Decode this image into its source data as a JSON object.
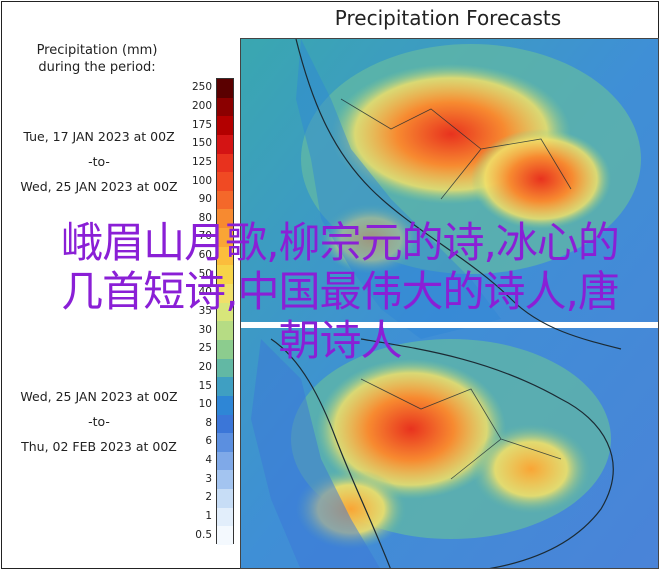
{
  "map": {
    "title": "Precipitation Forecasts",
    "legend_title_line1": "Precipitation (mm)",
    "legend_title_line2": "during the period:"
  },
  "period1": {
    "start": "Tue, 17 JAN 2023 at 00Z",
    "sep": "-to-",
    "end": "Wed, 25 JAN 2023 at 00Z"
  },
  "period2": {
    "start": "Wed, 25 JAN 2023 at 00Z",
    "sep": "-to-",
    "end": "Thu, 02 FEB 2023 at 00Z"
  },
  "colorbar": {
    "ticks": [
      "250",
      "200",
      "175",
      "150",
      "125",
      "100",
      "90",
      "80",
      "70",
      "60",
      "50",
      "40",
      "35",
      "30",
      "25",
      "20",
      "15",
      "10",
      "8",
      "6",
      "4",
      "3",
      "2",
      "1",
      "0.5"
    ],
    "colors": [
      "#5a0000",
      "#8b0000",
      "#b30000",
      "#d41414",
      "#e8321e",
      "#f04a23",
      "#f4682a",
      "#f78a30",
      "#f9a535",
      "#fbbd3c",
      "#f7d448",
      "#f0e06a",
      "#d8e67a",
      "#b6dc84",
      "#8ccc8e",
      "#62b8a4",
      "#3f9fc2",
      "#2e86d6",
      "#3b76d8",
      "#5b8fe0",
      "#7fa9e8",
      "#a3c4f0",
      "#c7ddf6",
      "#e2eefb",
      "#f4f9fe"
    ]
  },
  "overlay_text": "峨眉山月歌,柳宗元的诗,冰心的几首短诗,中国最伟大的诗人,唐朝诗人"
}
